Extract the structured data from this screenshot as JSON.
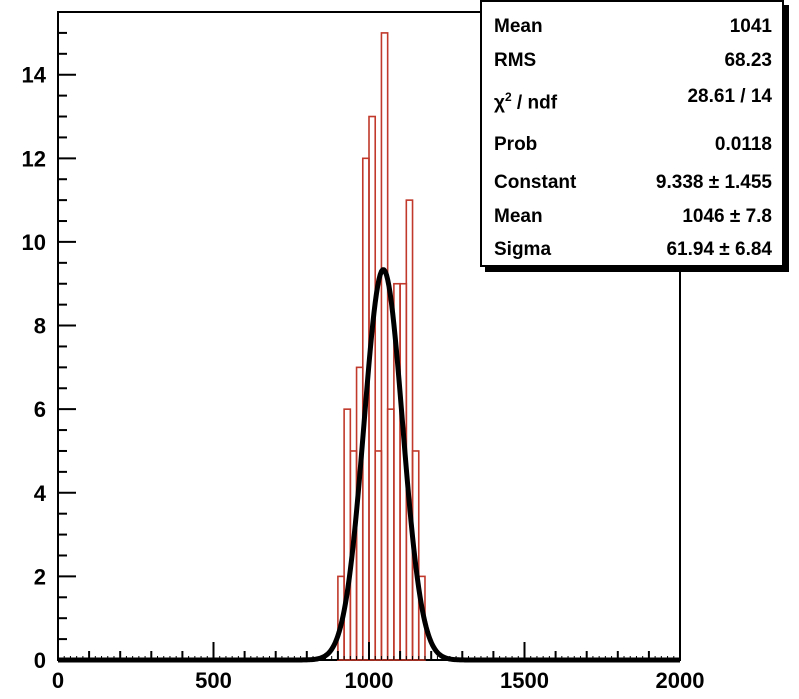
{
  "chart_data": {
    "type": "bar",
    "title": "",
    "xlabel": "",
    "ylabel": "",
    "xlim": [
      0,
      2000
    ],
    "ylim": [
      0,
      15.5
    ],
    "x_ticks": [
      "0",
      "500",
      "1000",
      "1500",
      "2000"
    ],
    "y_ticks": [
      "0",
      "2",
      "4",
      "6",
      "8",
      "10",
      "12",
      "14"
    ],
    "histogram": {
      "bin_width": 20,
      "bins_start": [
        900,
        920,
        940,
        960,
        980,
        1000,
        1020,
        1040,
        1060,
        1080,
        1100,
        1120,
        1140,
        1160
      ],
      "counts": [
        2,
        6,
        5,
        7,
        12,
        13,
        5,
        15,
        6,
        9,
        9,
        11,
        5,
        2
      ],
      "color": "#c0392b"
    },
    "fit": {
      "type": "gaussian",
      "constant": 9.338,
      "mean": 1046,
      "sigma": 61.94,
      "color": "#000000"
    },
    "grid": false
  },
  "stats": [
    {
      "name": "Mean",
      "value": "1041"
    },
    {
      "name": "RMS",
      "value": "68.23"
    },
    {
      "name": "χ",
      "sup": "2",
      "name_suffix": " / ndf",
      "value": "28.61 / 14"
    },
    {
      "name": "Prob",
      "value": "0.0118"
    },
    {
      "name": "Constant",
      "value": "9.338 ± 1.455"
    },
    {
      "name": "Mean",
      "value": "1046 ± 7.8"
    },
    {
      "name": "Sigma",
      "value": "61.94 ± 6.84"
    }
  ]
}
